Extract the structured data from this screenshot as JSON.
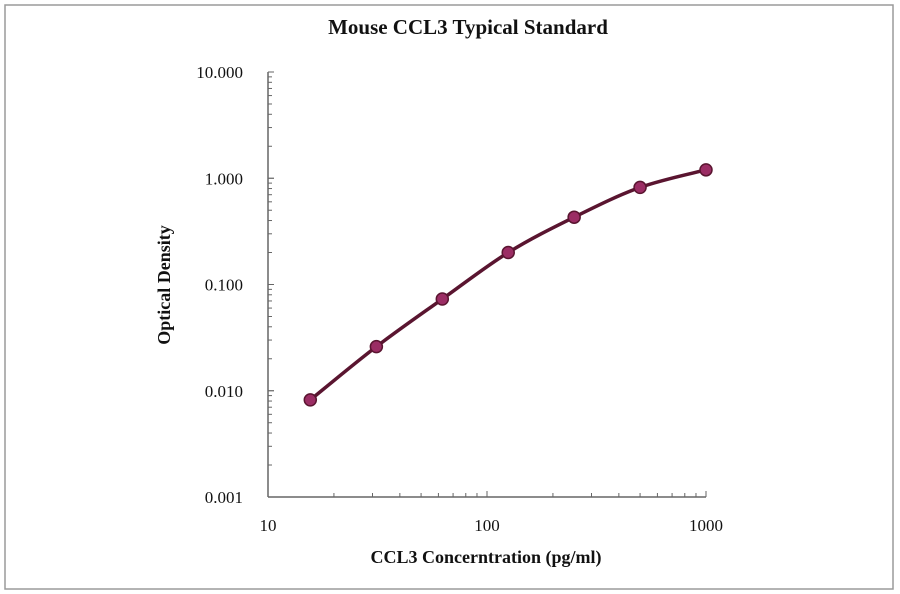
{
  "chart_data": {
    "type": "line",
    "title": "Mouse CCL3 Typical Standard",
    "xlabel": "CCL3 Concerntration (pg/ml)",
    "ylabel": "Optical Density",
    "x_scale": "log",
    "y_scale": "log",
    "xlim": [
      10,
      1000
    ],
    "ylim": [
      0.001,
      10
    ],
    "x_ticks": [
      "10",
      "100",
      "1000"
    ],
    "y_ticks": [
      "0.001",
      "0.010",
      "0.100",
      "1.000",
      "10.000"
    ],
    "grid": false,
    "series": [
      {
        "x": [
          15.6,
          31.25,
          62.5,
          125,
          250,
          500,
          1000
        ],
        "y": [
          0.0082,
          0.026,
          0.073,
          0.2,
          0.43,
          0.82,
          1.2
        ],
        "color": "#5a1530",
        "marker_color": "#9b2d64"
      }
    ]
  }
}
